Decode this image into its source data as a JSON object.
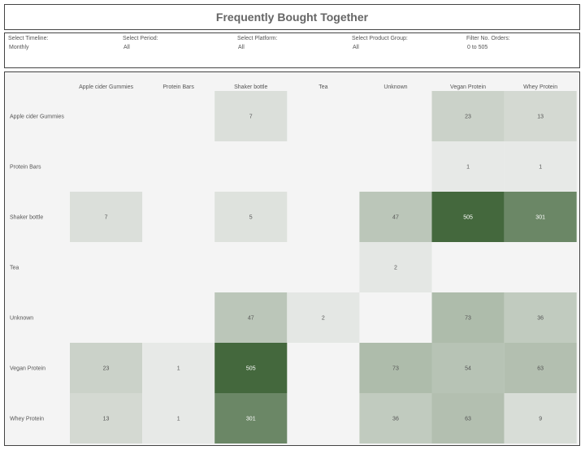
{
  "title": "Frequently Bought Together",
  "filters": [
    {
      "label": "Select Timeline:",
      "value": "Monthly"
    },
    {
      "label": "Select Period:",
      "value": "All"
    },
    {
      "label": "Select Platform:",
      "value": "All"
    },
    {
      "label": "Select Product Group:",
      "value": "All"
    },
    {
      "label": "Filter No. Orders:",
      "value": "0 to 505"
    }
  ],
  "colors": {
    "empty_cell": "#f4f4f4",
    "low": "#efefef",
    "high": "#44683d"
  },
  "chart_data": {
    "type": "heatmap",
    "title": "Frequently Bought Together",
    "columns": [
      "Apple cider Gummies",
      "Protein Bars",
      "Shaker bottle",
      "Tea",
      "Unknown",
      "Vegan Protein",
      "Whey Protein"
    ],
    "rows": [
      "Apple cider Gummies",
      "Protein Bars",
      "Shaker bottle",
      "Tea",
      "Unknown",
      "Vegan Protein",
      "Whey Protein"
    ],
    "values": [
      [
        null,
        null,
        7,
        null,
        null,
        23,
        13
      ],
      [
        null,
        null,
        null,
        null,
        null,
        1,
        1
      ],
      [
        7,
        null,
        5,
        null,
        47,
        505,
        301
      ],
      [
        null,
        null,
        null,
        null,
        2,
        null,
        null
      ],
      [
        null,
        null,
        47,
        2,
        null,
        73,
        36
      ],
      [
        23,
        1,
        505,
        null,
        73,
        54,
        63
      ],
      [
        13,
        1,
        301,
        null,
        36,
        63,
        9
      ]
    ],
    "color_range": [
      0,
      505
    ]
  }
}
